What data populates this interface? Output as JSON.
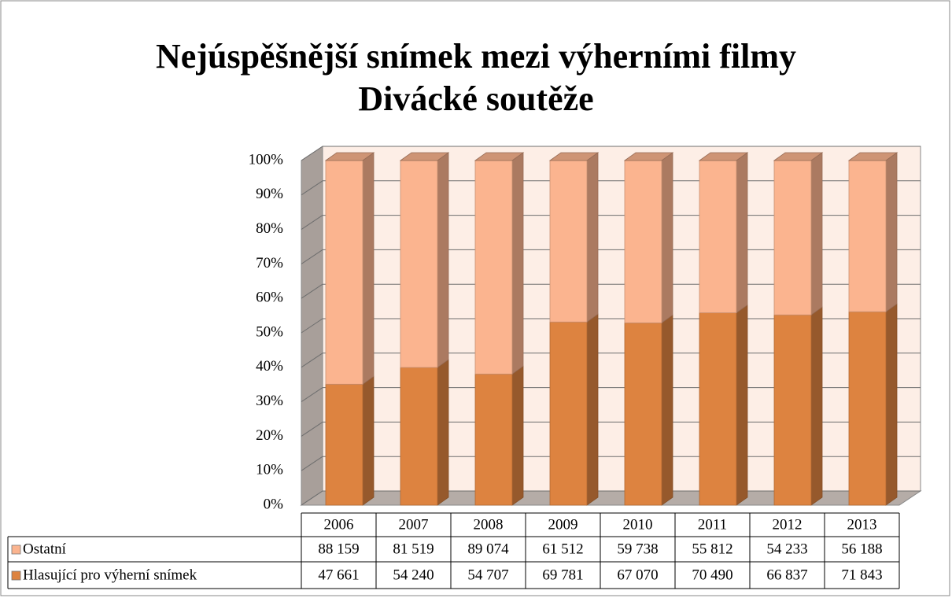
{
  "chart_data": {
    "type": "bar",
    "stacked": "percent",
    "title": [
      "Nejúspěšnější snímek mezi výherními filmy",
      "Divácké soutěže"
    ],
    "categories": [
      "2006",
      "2007",
      "2008",
      "2009",
      "2010",
      "2011",
      "2012",
      "2013"
    ],
    "series": [
      {
        "name": "Ostatní",
        "color": "#fbb48f",
        "values": [
          88159,
          81519,
          89074,
          61512,
          59738,
          55812,
          54233,
          56188
        ],
        "value_labels": [
          "88 159",
          "81 519",
          "89 074",
          "61 512",
          "59 738",
          "55 812",
          "54 233",
          "56 188"
        ]
      },
      {
        "name": "Hlasující pro výherní snímek",
        "color": "#dd8340",
        "values": [
          47661,
          54240,
          54707,
          69781,
          67070,
          70490,
          66837,
          71843
        ],
        "value_labels": [
          "47 661",
          "54 240",
          "54 707",
          "69 781",
          "67 070",
          "70 490",
          "66 837",
          "71 843"
        ]
      }
    ],
    "ylim": [
      0,
      100
    ],
    "yticks": [
      {
        "value": 0,
        "label": "0%"
      },
      {
        "value": 10,
        "label": "10%"
      },
      {
        "value": 20,
        "label": "20%"
      },
      {
        "value": 30,
        "label": "30%"
      },
      {
        "value": 40,
        "label": "40%"
      },
      {
        "value": 50,
        "label": "50%"
      },
      {
        "value": 60,
        "label": "60%"
      },
      {
        "value": 70,
        "label": "70%"
      },
      {
        "value": 80,
        "label": "80%"
      },
      {
        "value": 90,
        "label": "90%"
      },
      {
        "value": 100,
        "label": "100%"
      }
    ],
    "grid": true
  }
}
